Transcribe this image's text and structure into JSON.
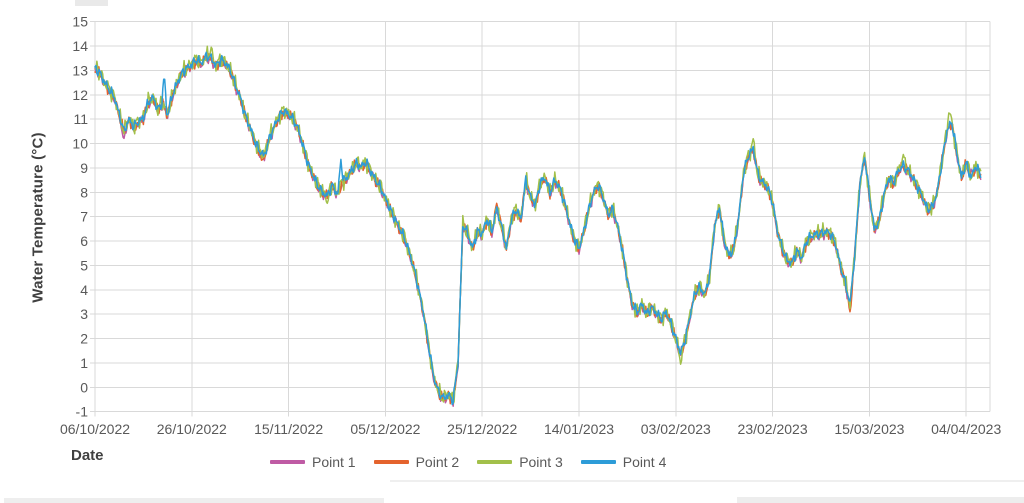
{
  "chart_data": {
    "type": "line",
    "title": "",
    "ylabel": "Water Temperature (°C)",
    "xlabel": "Date",
    "ylim": [
      -1,
      15
    ],
    "grid": true,
    "legend_position": "bottom",
    "y_tick_labels": [
      "15",
      "14",
      "13",
      "12",
      "11",
      "10",
      "9",
      "8",
      "7",
      "6",
      "5",
      "4",
      "3",
      "2",
      "1",
      "0",
      "-1"
    ],
    "x_tick_labels": [
      "06/10/2022",
      "26/10/2022",
      "15/11/2022",
      "05/12/2022",
      "25/12/2022",
      "14/01/2023",
      "03/02/2023",
      "23/02/2023",
      "15/03/2023",
      "04/04/2023"
    ],
    "x_tick_interval_days": 20,
    "x_start_day": 0,
    "x_end_day": 183,
    "series": [
      {
        "name": "Point 1",
        "color": "#bf5ba4",
        "offset": -0.08,
        "noise_amp": 0.18,
        "phase": 1.3,
        "spikes": [
          [
            5.9,
            10.15
          ],
          [
            181,
            8.95
          ]
        ]
      },
      {
        "name": "Point 2",
        "color": "#e4632d",
        "offset": -0.03,
        "noise_amp": 0.22,
        "phase": 2.1,
        "spikes": [
          [
            34.5,
            9.25
          ],
          [
            83,
            7.55
          ],
          [
            156,
            3.1
          ]
        ]
      },
      {
        "name": "Point 3",
        "color": "#a2c04a",
        "offset": 0.02,
        "noise_amp": 0.33,
        "phase": 3.7,
        "spikes": [
          [
            24,
            13.95
          ],
          [
            48,
            7.55
          ],
          [
            121,
            0.95
          ],
          [
            136,
            10.2
          ],
          [
            167,
            9.55
          ],
          [
            176.5,
            11.4
          ]
        ]
      },
      {
        "name": "Point 4",
        "color": "#2d9cd8",
        "offset": 0.0,
        "noise_amp": 0.2,
        "phase": 4.9,
        "spikes": [
          [
            14.3,
            12.9
          ],
          [
            50.8,
            9.35
          ]
        ]
      }
    ],
    "base_daily_values": [
      13.1,
      12.9,
      12.5,
      12.2,
      11.9,
      11.2,
      10.5,
      11.0,
      10.7,
      10.9,
      11.05,
      11.7,
      11.9,
      11.4,
      11.7,
      11.2,
      12.0,
      12.5,
      12.9,
      13.1,
      13.25,
      13.45,
      13.3,
      13.6,
      13.5,
      13.2,
      13.45,
      13.3,
      13.0,
      12.4,
      11.9,
      11.2,
      10.7,
      10.1,
      9.7,
      9.5,
      10.2,
      10.7,
      11.1,
      11.35,
      11.2,
      11.0,
      10.6,
      9.9,
      9.2,
      8.7,
      8.3,
      8.0,
      7.85,
      8.3,
      7.95,
      8.4,
      8.6,
      8.9,
      9.2,
      9.05,
      9.25,
      8.85,
      8.5,
      8.2,
      7.75,
      7.3,
      6.9,
      6.5,
      6.1,
      5.5,
      4.8,
      3.9,
      2.9,
      1.6,
      0.4,
      -0.2,
      -0.45,
      -0.3,
      -0.55,
      1.0,
      6.7,
      6.3,
      5.7,
      6.4,
      6.3,
      6.9,
      6.4,
      7.35,
      6.6,
      5.7,
      6.9,
      7.3,
      6.9,
      8.5,
      7.8,
      7.5,
      8.4,
      8.6,
      8.0,
      8.5,
      8.2,
      7.6,
      6.8,
      6.1,
      5.7,
      6.4,
      7.3,
      8.0,
      8.3,
      7.8,
      7.1,
      7.3,
      6.6,
      5.6,
      4.4,
      3.4,
      3.1,
      3.4,
      3.0,
      3.3,
      3.05,
      2.8,
      3.1,
      2.6,
      2.0,
      1.4,
      2.0,
      3.0,
      3.9,
      4.1,
      3.8,
      4.6,
      6.6,
      7.4,
      6.0,
      5.4,
      5.7,
      7.0,
      8.8,
      9.5,
      9.8,
      8.7,
      8.4,
      8.2,
      7.6,
      6.4,
      5.7,
      5.2,
      5.1,
      5.6,
      5.3,
      6.0,
      6.2,
      6.3,
      6.3,
      6.4,
      6.3,
      5.9,
      5.0,
      4.3,
      3.4,
      5.5,
      8.3,
      9.5,
      7.9,
      6.5,
      6.8,
      7.9,
      8.6,
      8.4,
      8.9,
      9.1,
      8.9,
      8.6,
      8.2,
      7.8,
      7.3,
      7.4,
      8.0,
      9.3,
      10.5,
      10.9,
      9.7,
      8.6,
      9.2,
      8.6,
      9.1,
      8.7
    ],
    "colors": {
      "grid": "#d9d9d9",
      "tick_text": "#595959",
      "axis_title_text": "#404040"
    }
  }
}
